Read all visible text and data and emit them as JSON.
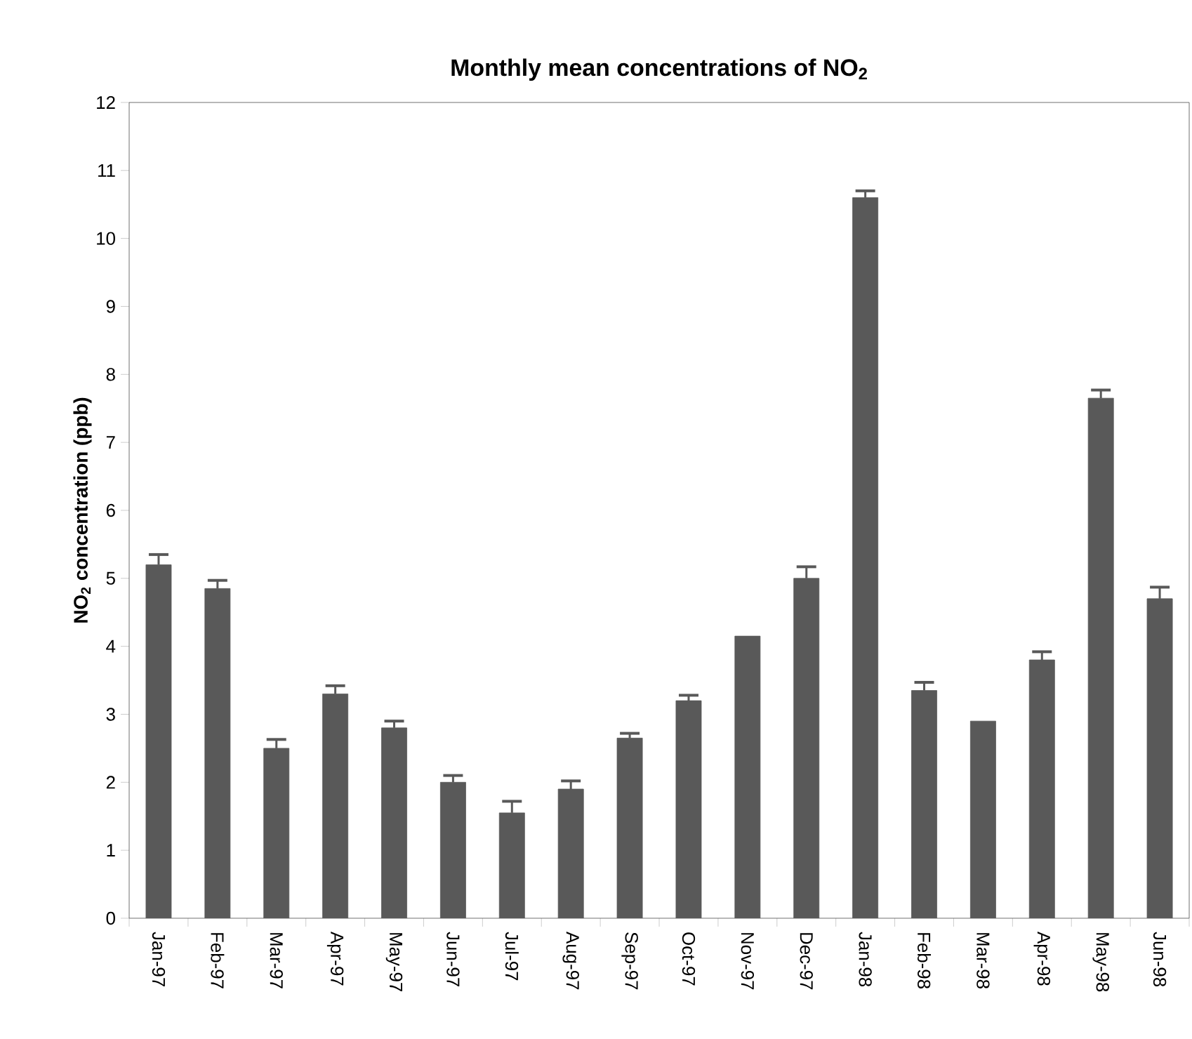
{
  "chart_data": {
    "type": "bar",
    "title": "Monthly mean concentrations of NO$_{2}$",
    "ylabel": "NO$_{2}$ concentration (ppb)",
    "categories": [
      "Jan-97",
      "Feb-97",
      "Mar-97",
      "Apr-97",
      "May-97",
      "Jun-97",
      "Jul-97",
      "Aug-97",
      "Sep-97",
      "Oct-97",
      "Nov-97",
      "Dec-97",
      "Jan-98",
      "Feb-98",
      "Mar-98",
      "Apr-98",
      "May-98",
      "Jun-98"
    ],
    "values": [
      5.2,
      4.85,
      2.5,
      3.3,
      2.8,
      2.0,
      1.55,
      1.9,
      2.65,
      3.2,
      4.15,
      5.0,
      10.6,
      3.35,
      2.9,
      3.8,
      7.65,
      4.7
    ],
    "errors": [
      0.15,
      0.12,
      0.13,
      0.12,
      0.1,
      0.1,
      0.17,
      0.12,
      0.07,
      0.08,
      null,
      0.17,
      0.1,
      0.12,
      null,
      0.12,
      0.12,
      0.17
    ],
    "color": "#595959",
    "ylim": [
      0,
      12
    ],
    "yticks": [
      0,
      1,
      2,
      3,
      4,
      5,
      6,
      7,
      8,
      9,
      10,
      11,
      12
    ],
    "grid": false
  }
}
